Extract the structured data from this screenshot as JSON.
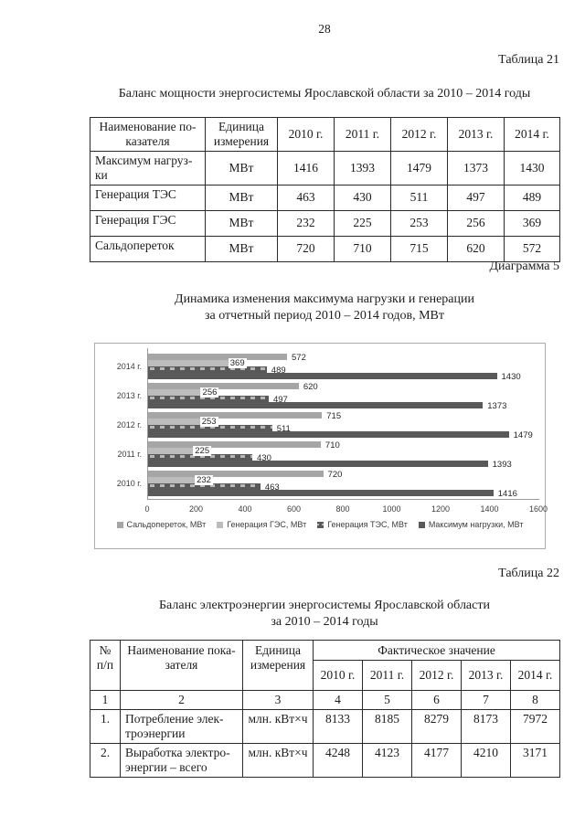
{
  "page": {
    "number": "28"
  },
  "table21": {
    "caption": "Таблица 21",
    "title": "Баланс мощности энергосистемы Ярославской области за 2010 – 2014 годы",
    "headers": {
      "name": "Наименование по-\nказателя",
      "unit": "Единица\nизмерения",
      "years": [
        "2010 г.",
        "2011 г.",
        "2012 г.",
        "2013 г.",
        "2014 г."
      ]
    },
    "rows": [
      {
        "name": "Максимум нагруз-\nки",
        "unit": "МВт",
        "values": [
          1416,
          1393,
          1479,
          1373,
          1430
        ]
      },
      {
        "name": "Генерация ТЭС",
        "unit": "МВт",
        "values": [
          463,
          430,
          511,
          497,
          489
        ]
      },
      {
        "name": "Генерация ГЭС",
        "unit": "МВт",
        "values": [
          232,
          225,
          253,
          256,
          369
        ]
      },
      {
        "name": "Сальдопереток",
        "unit": "МВт",
        "values": [
          720,
          710,
          715,
          620,
          572
        ]
      }
    ]
  },
  "diagram5": {
    "caption": "Диаграмма 5",
    "title_line1": "Динамика изменения максимума нагрузки и генерации",
    "title_line2": "за отчетный период 2010 – 2014 годов, МВт"
  },
  "chart_data": {
    "type": "bar",
    "orientation": "horizontal",
    "title": "Динамика изменения максимума нагрузки и генерации за отчетный период 2010 – 2014 годов, МВт",
    "categories": [
      "2014 г.",
      "2013 г.",
      "2012 г.",
      "2011 г.",
      "2010 г."
    ],
    "series": [
      {
        "name": "Сальдопереток, МВт",
        "values": [
          572,
          620,
          715,
          710,
          720
        ],
        "color": "#a6a6a6",
        "pattern": "solid",
        "label_mode": "after"
      },
      {
        "name": "Генерация ГЭС, МВт",
        "values": [
          369,
          256,
          253,
          225,
          232
        ],
        "color": "#bcbcbc",
        "pattern": "solid",
        "label_mode": "center-boxed"
      },
      {
        "name": "Генерация ТЭС, МВт",
        "values": [
          489,
          497,
          511,
          430,
          463
        ],
        "color": "#595959",
        "pattern": "checker",
        "label_mode": "after"
      },
      {
        "name": "Максимум нагрузки, МВт",
        "values": [
          1430,
          1373,
          1479,
          1393,
          1416
        ],
        "color": "#595959",
        "pattern": "solid",
        "label_mode": "after"
      }
    ],
    "xlim": [
      0,
      1600
    ],
    "x_ticks": [
      0,
      200,
      400,
      600,
      800,
      1000,
      1200,
      1400,
      1600
    ],
    "grid": false,
    "legend_position": "bottom",
    "value_labels": true
  },
  "table22": {
    "caption": "Таблица 22",
    "title_line1": "Баланс электроэнергии энергосистемы Ярославской области",
    "title_line2": "за 2010 – 2014 годы",
    "header": {
      "num": "№\nп/п",
      "name": "Наименование пока-\nзателя",
      "unit": "Единица\nизмерения",
      "fact": "Фактическое значение",
      "years": [
        "2010 г.",
        "2011 г.",
        "2012 г.",
        "2013 г.",
        "2014 г."
      ]
    },
    "numbering": [
      "1",
      "2",
      "3",
      "4",
      "5",
      "6",
      "7",
      "8"
    ],
    "rows": [
      {
        "num": "1.",
        "name": "Потребление элек-\nтроэнергии",
        "unit": "млн. кВт×ч",
        "values": [
          8133,
          8185,
          8279,
          8173,
          7972
        ]
      },
      {
        "num": "2.",
        "name": "Выработка электро-\nэнергии – всего",
        "unit": "млн. кВт×ч",
        "values": [
          4248,
          4123,
          4177,
          4210,
          3171
        ]
      }
    ]
  }
}
